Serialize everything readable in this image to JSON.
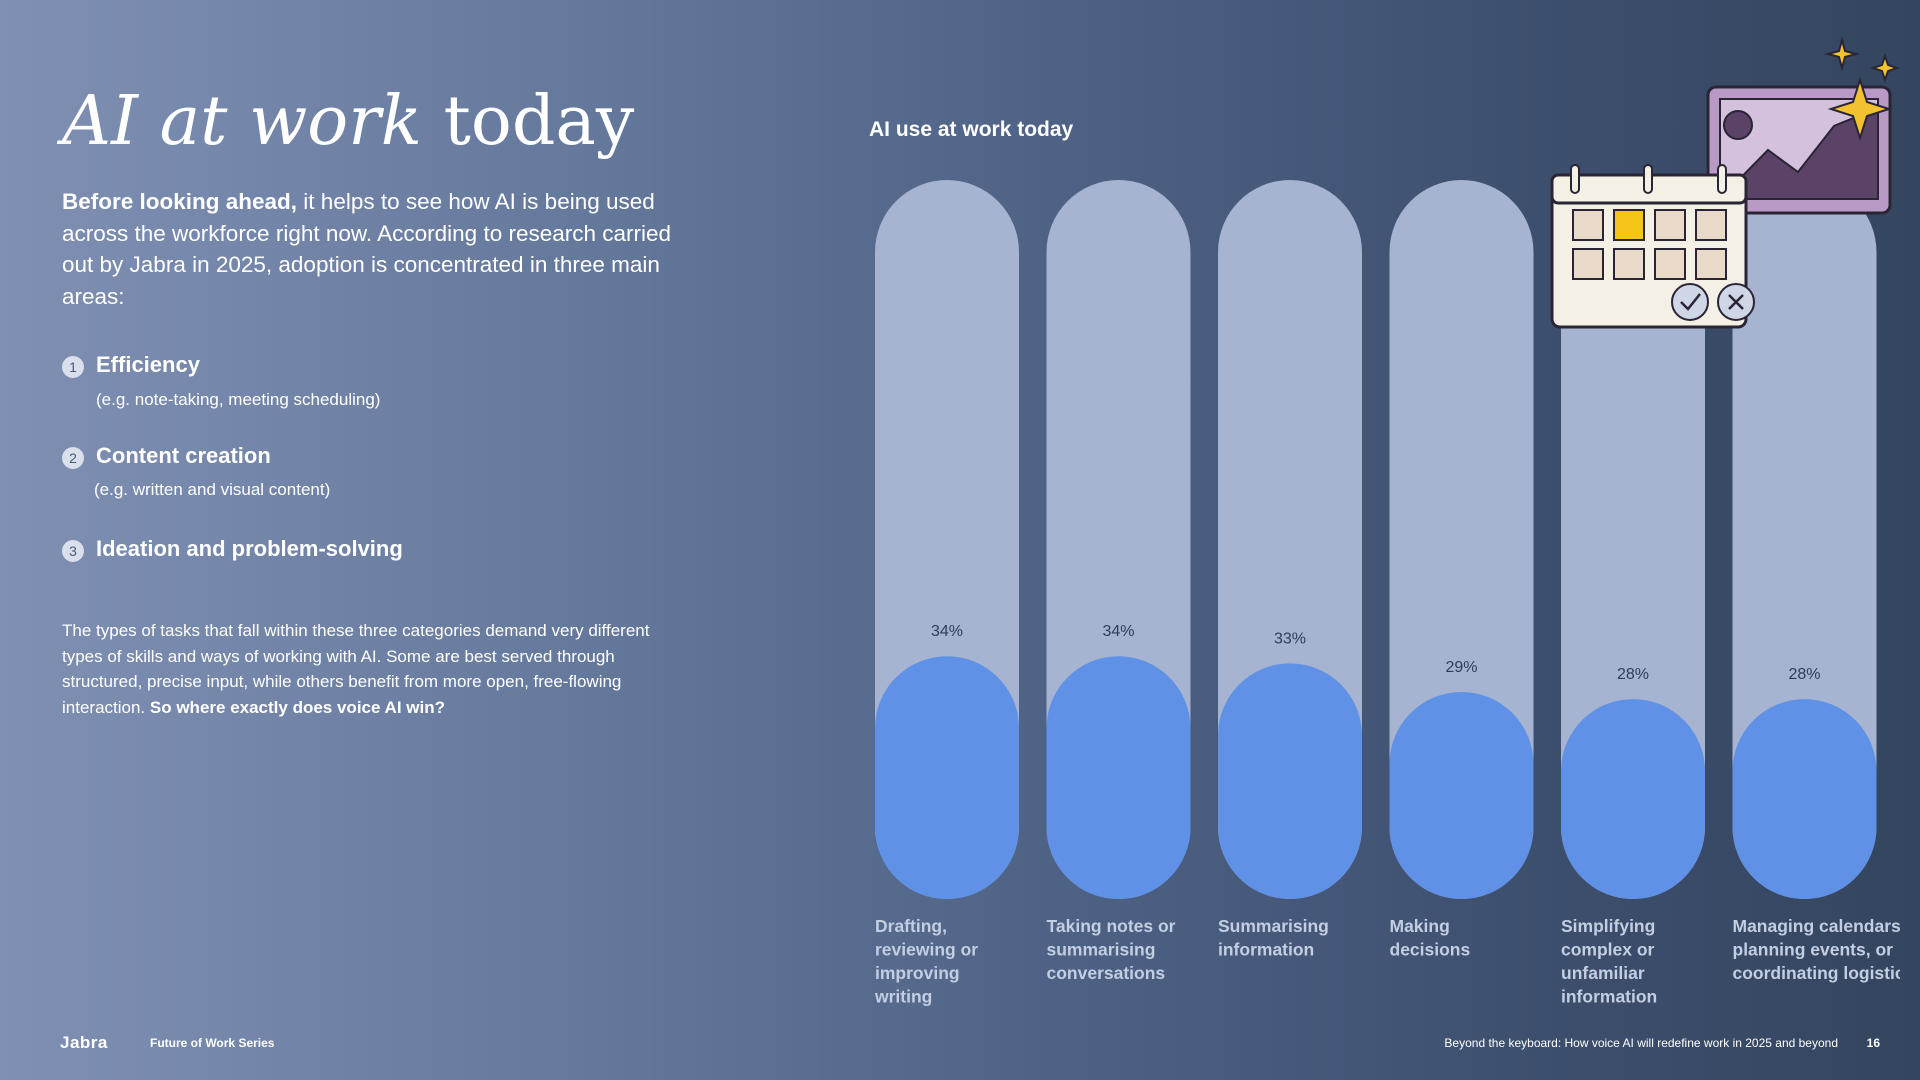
{
  "page": {
    "title_italic": "AI at work",
    "title_rest": "today",
    "intro_bold": "Before looking ahead,",
    "intro_rest": " it helps to see how AI is being used across the workforce right now. According to research carried out by Jabra in 2025, adoption is concentrated in three main areas:",
    "areas": [
      {
        "num": "1",
        "title": "Efficiency",
        "sub": "(e.g. note-taking, meeting scheduling)"
      },
      {
        "num": "2",
        "title": "Content creation",
        "sub": "(e.g. written and visual content)"
      },
      {
        "num": "3",
        "title": "Ideation and problem-solving",
        "sub": ""
      }
    ],
    "body_text": "The types of tasks that fall within these three categories demand very different types of skills and ways of working with AI. Some are best served through structured, precise input, while others benefit from more open, free-flowing interaction. ",
    "body_bold": "So where exactly does voice AI win?"
  },
  "footer": {
    "logo": "Jabra",
    "series": "Future of Work Series",
    "doc_title": "Beyond the keyboard: How voice AI will redefine work in 2025 and beyond",
    "page_number": "16"
  },
  "illustration": {
    "icon": "calendar-photo-sparkle-illustration"
  },
  "chart_data": {
    "type": "bar",
    "title": "AI use at work today",
    "categories": [
      "Drafting, reviewing or improving writing",
      "Taking notes or summarising conversations",
      "Summarising information",
      "Making decisions",
      "Simplifying complex or unfamiliar information",
      "Managing calendars, planning events, or coordinating logistics"
    ],
    "category_lines": [
      [
        "Drafting,",
        "reviewing or",
        "improving",
        "writing"
      ],
      [
        "Taking notes or",
        "summarising",
        "conversations"
      ],
      [
        "Summarising",
        "information"
      ],
      [
        "Making",
        "decisions"
      ],
      [
        "Simplifying",
        "complex or",
        "unfamiliar",
        "information"
      ],
      [
        "Managing calendars,",
        "planning events, or",
        "coordinating logistics"
      ]
    ],
    "values": [
      34,
      34,
      33,
      29,
      28,
      28
    ],
    "value_labels": [
      "34%",
      "34%",
      "33%",
      "29%",
      "28%",
      "28%"
    ],
    "unit": "%",
    "ylim": [
      0,
      100
    ],
    "grid": false,
    "colors": {
      "track": "#a6b4d1",
      "fill": "#5f91e6",
      "label": "#2f3d56",
      "category": "#c3cee2"
    }
  }
}
